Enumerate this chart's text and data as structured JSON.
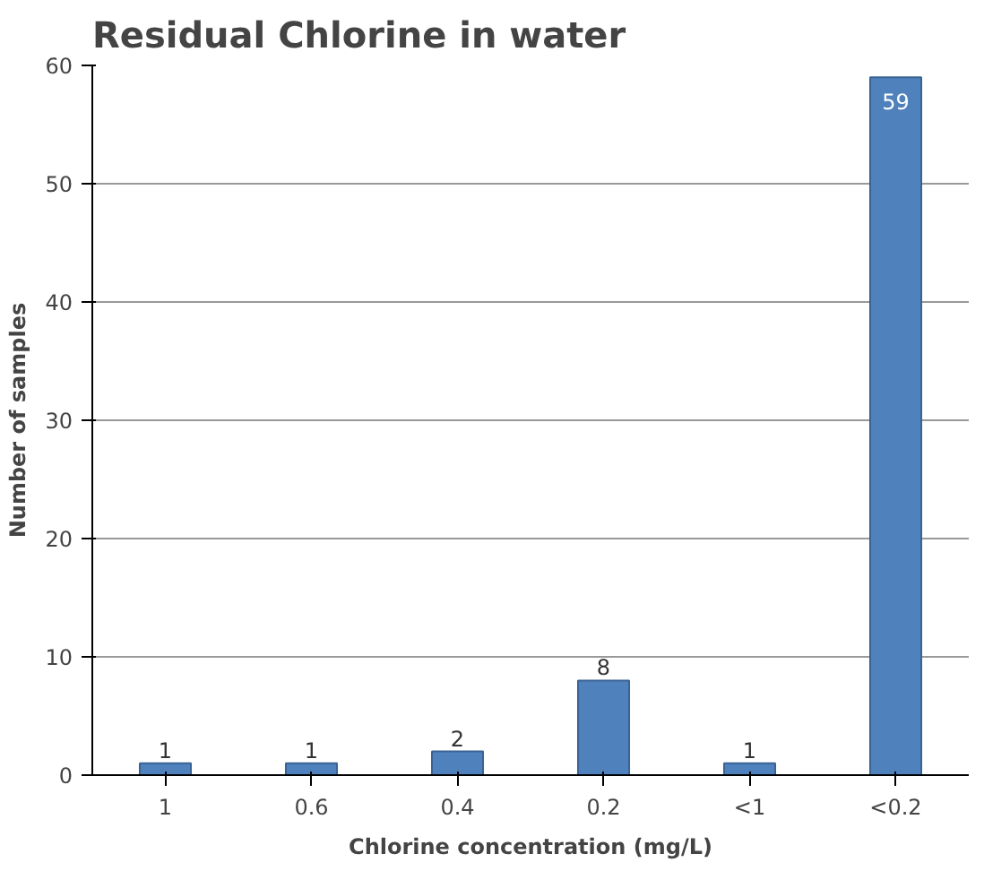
{
  "chart_data": {
    "type": "bar",
    "title": "Residual Chlorine in water",
    "xlabel": "Chlorine concentration (mg/L)",
    "ylabel": "Number of samples",
    "categories": [
      "1",
      "0.6",
      "0.4",
      "0.2",
      "<1",
      "<0.2"
    ],
    "values": [
      1,
      1,
      2,
      8,
      1,
      59
    ],
    "color": "#4f81bd",
    "ylim": [
      0,
      60
    ],
    "yticks": [
      0,
      10,
      20,
      30,
      40,
      50,
      60
    ],
    "grid": "y",
    "data_labels": true
  }
}
